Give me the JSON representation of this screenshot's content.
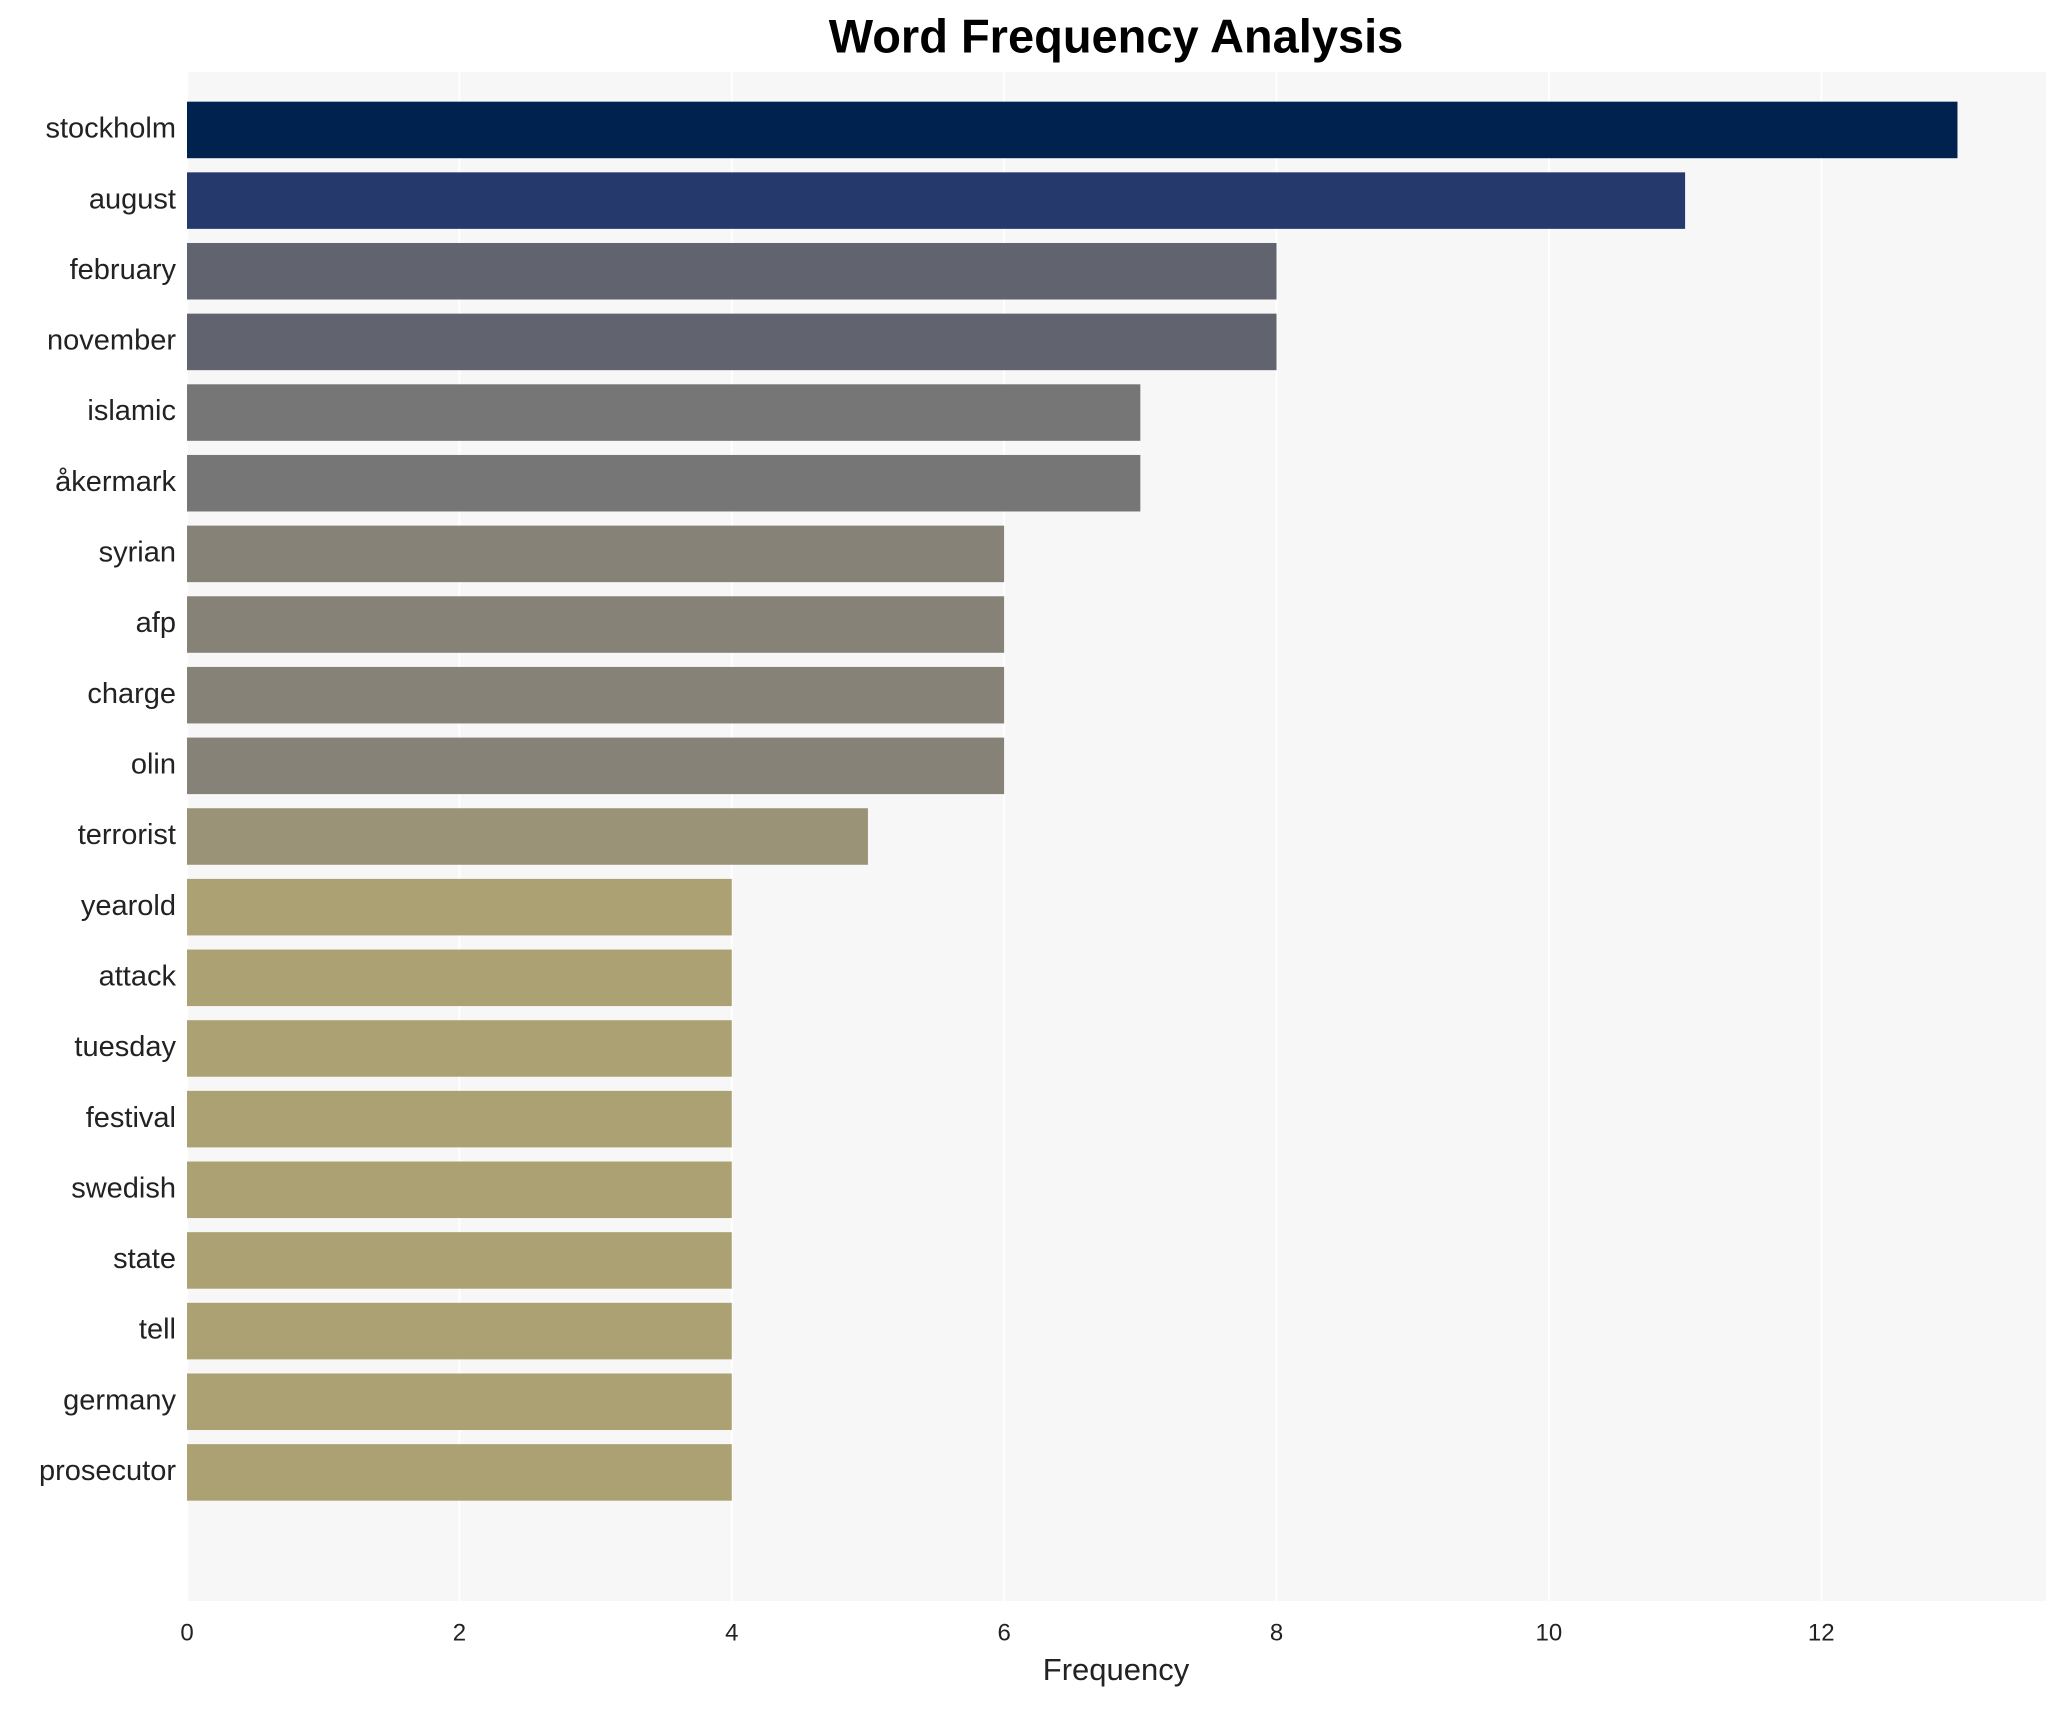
{
  "chart_data": {
    "type": "barh",
    "title": "Word Frequency Analysis",
    "xlabel": "Frequency",
    "categories": [
      "stockholm",
      "august",
      "february",
      "november",
      "islamic",
      "åkermark",
      "syrian",
      "afp",
      "charge",
      "olin",
      "terrorist",
      "yearold",
      "attack",
      "tuesday",
      "festival",
      "swedish",
      "state",
      "tell",
      "germany",
      "prosecutor"
    ],
    "values": [
      13,
      11,
      8,
      8,
      7,
      7,
      6,
      6,
      6,
      6,
      5,
      4,
      4,
      4,
      4,
      4,
      4,
      4,
      4,
      4
    ],
    "colors": [
      "#00224e",
      "#26396c",
      "#61646f",
      "#61646f",
      "#767676",
      "#767676",
      "#868278",
      "#868278",
      "#868278",
      "#868278",
      "#9a9377",
      "#aba173",
      "#aba173",
      "#aba173",
      "#aba173",
      "#aba173",
      "#aba173",
      "#aba173",
      "#aba173",
      "#aba173"
    ],
    "xlim": [
      0,
      13.65
    ],
    "xticks": [
      0,
      2,
      4,
      6,
      8,
      10,
      12
    ],
    "grid": true
  }
}
